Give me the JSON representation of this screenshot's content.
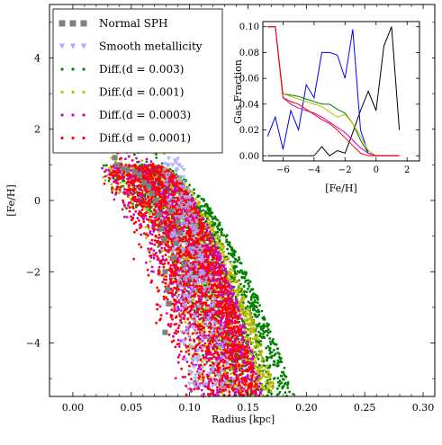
{
  "chart_data": [
    {
      "type": "scatter",
      "xlabel": "Radius [kpc]",
      "ylabel": "[Fe/H]",
      "xlim": [
        -0.02,
        0.31
      ],
      "ylim": [
        -5.5,
        5.5
      ],
      "xticks": [
        "0.00",
        "0.05",
        "0.10",
        "0.15",
        "0.20",
        "0.25",
        "0.30"
      ],
      "yticks": [
        "−4",
        "−2",
        "0",
        "2",
        "4"
      ],
      "xtick_values": [
        0.0,
        0.05,
        0.1,
        0.15,
        0.2,
        0.25,
        0.3
      ],
      "ytick_values": [
        -4,
        -2,
        0,
        2,
        4
      ],
      "legend_position": "top-left",
      "series": [
        {
          "name": "Normal SPH",
          "marker": "square",
          "color": "#808080",
          "points": [
            [
              0.026,
              4.6
            ],
            [
              0.031,
              5.0
            ],
            [
              0.034,
              5.1
            ],
            [
              0.027,
              1.6
            ],
            [
              0.028,
              1.4
            ],
            [
              0.036,
              1.2
            ],
            [
              0.038,
              1.0
            ],
            [
              0.043,
              0.9
            ],
            [
              0.047,
              0.85
            ],
            [
              0.053,
              0.8
            ],
            [
              0.057,
              0.7
            ],
            [
              0.061,
              0.5
            ],
            [
              0.065,
              0.4
            ],
            [
              0.068,
              0.2
            ],
            [
              0.071,
              0.0
            ],
            [
              0.074,
              -0.4
            ],
            [
              0.076,
              -0.8
            ],
            [
              0.078,
              -1.1
            ],
            [
              0.079,
              -2.0
            ],
            [
              0.081,
              -2.5
            ],
            [
              0.082,
              -2.9
            ],
            [
              0.079,
              -3.7
            ],
            [
              0.086,
              -1.6
            ],
            [
              0.088,
              -1.2
            ],
            [
              0.09,
              -0.6
            ],
            [
              0.092,
              -0.9
            ],
            [
              0.084,
              -0.3
            ],
            [
              0.095,
              -1.8
            ]
          ]
        },
        {
          "name": "Smooth metallicity",
          "marker": "triangle-down",
          "color": "#a8a8ff",
          "x_range": [
            0.07,
            0.135
          ],
          "y_range": [
            -5.3,
            1.2
          ],
          "count": 260
        },
        {
          "name": "Diff.(d = 0.003)",
          "marker": "dot",
          "color": "#008000",
          "x_range": [
            0.025,
            0.19
          ],
          "y_range": [
            -5.5,
            1.0
          ],
          "count": 1500
        },
        {
          "name": "Diff.(d = 0.001)",
          "marker": "dot",
          "color": "#bcbc00",
          "x_range": [
            0.025,
            0.175
          ],
          "y_range": [
            -5.5,
            1.0
          ],
          "count": 1500
        },
        {
          "name": "Diff.(d = 0.0003)",
          "marker": "dot",
          "color": "#cc00cc",
          "x_range": [
            0.025,
            0.165
          ],
          "y_range": [
            -5.5,
            1.0
          ],
          "count": 1500
        },
        {
          "name": "Diff.(d = 0.0001)",
          "marker": "dot",
          "color": "#ff0000",
          "x_range": [
            0.025,
            0.16
          ],
          "y_range": [
            -5.5,
            1.0
          ],
          "count": 1800
        }
      ]
    },
    {
      "type": "line",
      "xlabel": "[Fe/H]",
      "ylabel": "Gas Fraction",
      "xlim": [
        -7.3,
        2.8
      ],
      "ylim": [
        -0.004,
        0.104
      ],
      "xticks": [
        "−6",
        "−4",
        "−2",
        "0",
        "2"
      ],
      "xtick_values": [
        -6,
        -4,
        -2,
        0,
        2
      ],
      "yticks": [
        "0.00",
        "0.02",
        "0.04",
        "0.06",
        "0.08",
        "0.10"
      ],
      "ytick_values": [
        0.0,
        0.02,
        0.04,
        0.06,
        0.08,
        0.1
      ],
      "series": [
        {
          "color": "#000000",
          "x": [
            -7.0,
            -6.5,
            -6.0,
            -5.5,
            -5.0,
            -4.5,
            -4.0,
            -3.5,
            -3.0,
            -2.5,
            -2.0,
            -1.5,
            -1.0,
            -0.5,
            0.0,
            0.5,
            1.0,
            1.5
          ],
          "y": [
            0.0,
            0.0,
            0.0,
            0.0,
            0.0,
            0.0,
            0.0,
            0.007,
            0.0,
            0.004,
            0.002,
            0.018,
            0.035,
            0.05,
            0.035,
            0.085,
            0.1,
            0.02
          ]
        },
        {
          "color": "#0000ff",
          "x": [
            -7.0,
            -6.5,
            -6.0,
            -5.5,
            -5.0,
            -4.5,
            -4.0,
            -3.5,
            -3.0,
            -2.5,
            -2.0,
            -1.5,
            -1.0,
            -0.5,
            0.0,
            0.5,
            1.0,
            1.5
          ],
          "y": [
            0.015,
            0.03,
            0.005,
            0.035,
            0.02,
            0.055,
            0.045,
            0.08,
            0.08,
            0.078,
            0.06,
            0.098,
            0.02,
            0.002,
            0.0,
            0.0,
            0.0,
            0.0
          ]
        },
        {
          "color": "#008000",
          "x": [
            -7.0,
            -6.5,
            -6.0,
            -5.5,
            -5.0,
            -4.5,
            -4.0,
            -3.5,
            -3.0,
            -2.5,
            -2.0,
            -1.5,
            -1.0,
            -0.5,
            0.0,
            0.5,
            1.0,
            1.5
          ],
          "y": [
            0.1,
            0.1,
            0.048,
            0.047,
            0.046,
            0.044,
            0.042,
            0.04,
            0.04,
            0.036,
            0.033,
            0.025,
            0.012,
            0.002,
            0.0,
            0.0,
            0.0,
            0.0
          ]
        },
        {
          "color": "#bcbc00",
          "x": [
            -7.0,
            -6.5,
            -6.0,
            -5.5,
            -5.0,
            -4.5,
            -4.0,
            -3.5,
            -3.0,
            -2.5,
            -2.0,
            -1.5,
            -1.0,
            -0.5,
            0.0,
            0.5,
            1.0,
            1.5
          ],
          "y": [
            0.1,
            0.1,
            0.048,
            0.046,
            0.044,
            0.042,
            0.04,
            0.038,
            0.034,
            0.03,
            0.032,
            0.025,
            0.015,
            0.004,
            0.0,
            0.0,
            0.0,
            0.0
          ]
        },
        {
          "color": "#cc00cc",
          "x": [
            -7.0,
            -6.5,
            -6.0,
            -5.5,
            -5.0,
            -4.5,
            -4.0,
            -3.5,
            -3.0,
            -2.5,
            -2.0,
            -1.5,
            -1.0,
            -0.5,
            0.0,
            0.5,
            1.0,
            1.5
          ],
          "y": [
            0.1,
            0.1,
            0.045,
            0.04,
            0.037,
            0.035,
            0.033,
            0.03,
            0.026,
            0.022,
            0.018,
            0.012,
            0.006,
            0.002,
            0.0,
            0.0,
            0.0,
            0.0
          ]
        },
        {
          "color": "#ff0000",
          "x": [
            -7.0,
            -6.5,
            -6.0,
            -5.5,
            -5.0,
            -4.5,
            -4.0,
            -3.5,
            -3.0,
            -2.5,
            -2.0,
            -1.5,
            -1.0,
            -0.5,
            0.0,
            0.5,
            1.0,
            1.5
          ],
          "y": [
            0.1,
            0.1,
            0.045,
            0.042,
            0.04,
            0.036,
            0.032,
            0.028,
            0.025,
            0.02,
            0.014,
            0.008,
            0.002,
            0.0,
            0.0,
            0.0,
            0.0,
            0.0
          ]
        }
      ]
    }
  ]
}
